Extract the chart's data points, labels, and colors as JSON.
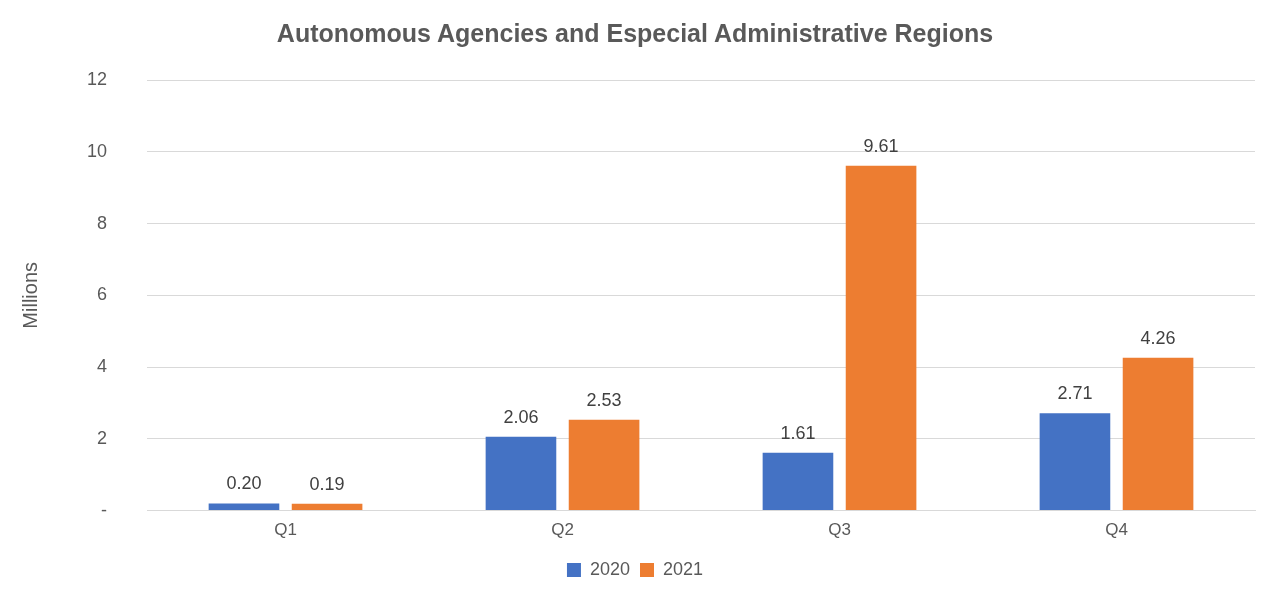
{
  "chart_data": {
    "type": "bar",
    "title": "Autonomous Agencies and Especial Administrative Regions",
    "ylabel": "Millions",
    "categories": [
      "Q1",
      "Q2",
      "Q3",
      "Q4"
    ],
    "series": [
      {
        "name": "2020",
        "color": "#4472c4",
        "values": [
          0.2,
          2.06,
          1.61,
          2.71
        ],
        "value_labels": [
          "0.20",
          "2.06",
          "1.61",
          "2.71"
        ]
      },
      {
        "name": "2021",
        "color": "#ed7d31",
        "values": [
          0.19,
          2.53,
          9.61,
          4.26
        ],
        "value_labels": [
          "0.19",
          "2.53",
          "9.61",
          "4.26"
        ]
      }
    ],
    "ylim": [
      0,
      12
    ],
    "yticks": [
      {
        "value": 0,
        "label": "-"
      },
      2,
      4,
      6,
      8,
      10,
      12
    ],
    "grid": "y",
    "legend": "bottom"
  }
}
